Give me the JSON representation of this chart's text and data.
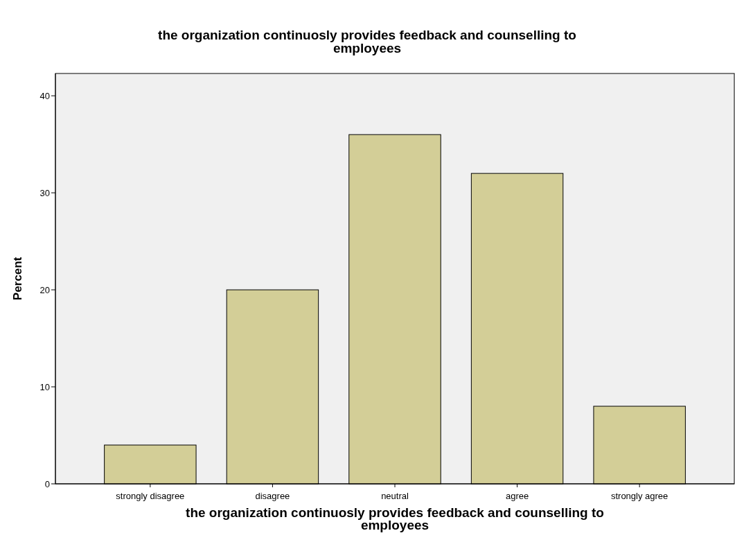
{
  "chart_data": {
    "type": "bar",
    "title": "the organization continuosly provides feedback and counselling to\nemployees",
    "xlabel": "the organization continuosly provides feedback and counselling to\nemployees",
    "ylabel": "Percent",
    "categories": [
      "strongly disagree",
      "disagree",
      "neutral",
      "agree",
      "strongly agree"
    ],
    "values": [
      4,
      20,
      36,
      32,
      8
    ],
    "color": "#d3ce97",
    "ylim": [
      0,
      42.3
    ],
    "yticks": [
      0,
      10,
      20,
      30,
      40
    ],
    "grid": false
  }
}
